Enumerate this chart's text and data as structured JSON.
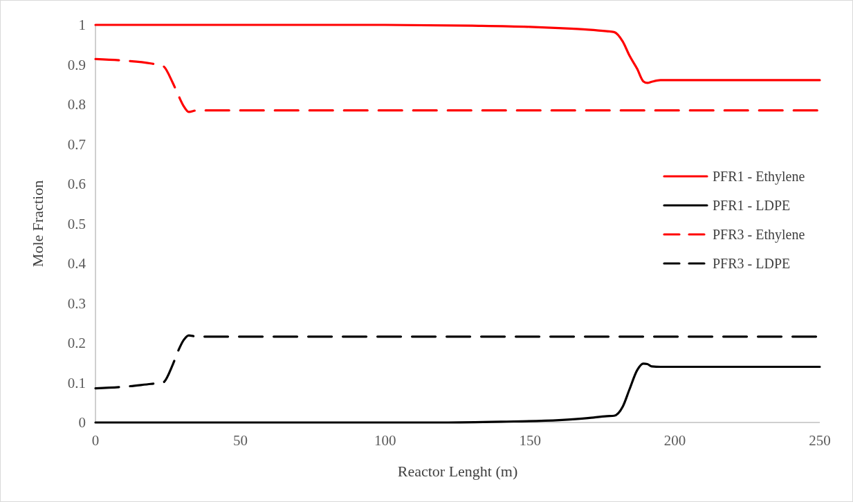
{
  "chart_data": {
    "type": "line",
    "xlabel": "Reactor Lenght (m)",
    "ylabel": "Mole Fraction",
    "xlim": [
      0,
      250
    ],
    "xticks": [
      0,
      50,
      100,
      150,
      200,
      250
    ],
    "ylim": [
      0,
      1
    ],
    "yticks": [
      0,
      {
        "value": 0.1,
        "label": "0.1"
      },
      {
        "value": 0.2,
        "label": "0.2"
      },
      {
        "value": 0.3,
        "label": "0.3"
      },
      {
        "value": 0.4,
        "label": "0.4"
      },
      {
        "value": 0.5,
        "label": "0.5"
      },
      {
        "value": 0.6,
        "label": "0.6"
      },
      {
        "value": 0.7,
        "label": "0.7"
      },
      {
        "value": 0.8,
        "label": "0.8"
      },
      {
        "value": 0.9,
        "label": "0.9"
      },
      1
    ],
    "grid": false,
    "legend": "right",
    "marker": "none",
    "series": [
      {
        "name": "PFR1 - Ethylene",
        "color": "#ff0000",
        "line_style": "solid",
        "x": [
          0,
          50,
          100,
          130,
          150,
          160,
          170,
          176.5,
          179,
          182,
          184.3,
          187,
          189.1,
          190.5,
          192,
          195,
          250
        ],
        "values": [
          1,
          1,
          1,
          0.998,
          0.995,
          0.992,
          0.988,
          0.984,
          0.982,
          0.958,
          0.923,
          0.889,
          0.858,
          0.854,
          0.857,
          0.861,
          0.861
        ]
      },
      {
        "name": "PFR1 - LDPE",
        "color": "#000000",
        "line_style": "solid",
        "x": [
          0,
          50,
          100,
          120,
          140,
          160,
          170,
          176.5,
          179,
          182,
          184.3,
          187,
          189.1,
          190.5,
          192,
          195,
          250
        ],
        "values": [
          0,
          0,
          0,
          0,
          0.002,
          0.006,
          0.011,
          0.016,
          0.017,
          0.04,
          0.083,
          0.132,
          0.148,
          0.147,
          0.141,
          0.14,
          0.14
        ]
      },
      {
        "name": "PFR3 - Ethylene",
        "color": "#ff0000",
        "line_style": "dashed",
        "x": [
          0,
          10,
          19.1,
          23.2,
          26.7,
          28.6,
          30.5,
          32.2,
          35,
          250
        ],
        "values": [
          0.914,
          0.91,
          0.903,
          0.897,
          0.854,
          0.823,
          0.795,
          0.781,
          0.785,
          0.785
        ]
      },
      {
        "name": "PFR3 - LDPE",
        "color": "#000000",
        "line_style": "dashed",
        "x": [
          0,
          10,
          19.1,
          23.2,
          26.7,
          28.6,
          30.5,
          32.2,
          35,
          250
        ],
        "values": [
          0.086,
          0.09,
          0.097,
          0.1,
          0.146,
          0.181,
          0.208,
          0.219,
          0.216,
          0.216
        ]
      }
    ]
  }
}
